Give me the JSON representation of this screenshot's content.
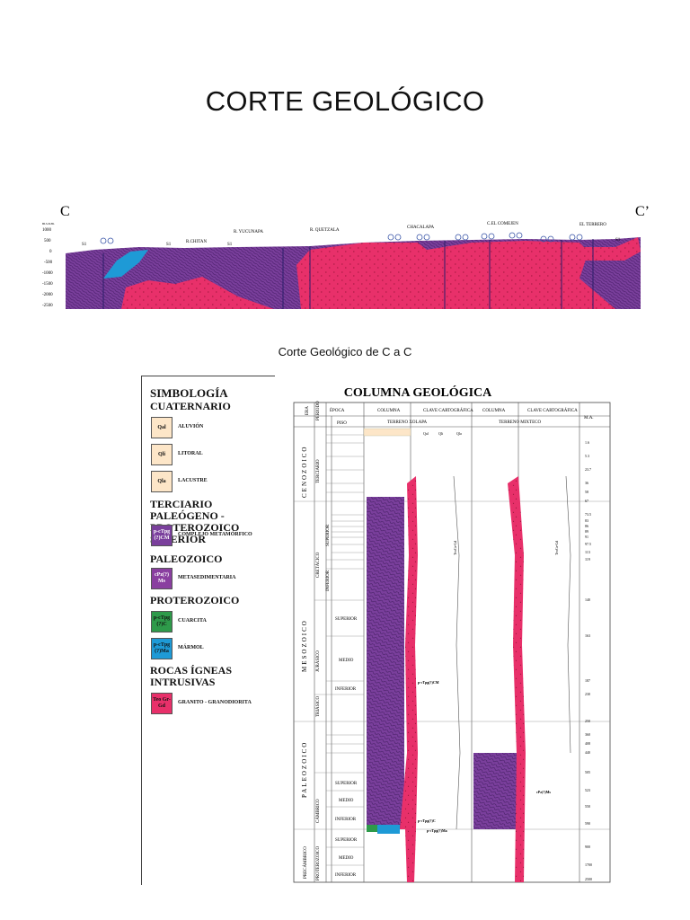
{
  "page": {
    "title": "CORTE GEOLÓGICO",
    "caption": "Corte Geológico de C a C"
  },
  "section": {
    "left_label": "C",
    "right_label": "C’",
    "unit_label": "m.s.n.m.",
    "y_ticks": [
      "1000",
      "500",
      "0",
      "-500",
      "-1000",
      "-1500",
      "-2000",
      "-2500"
    ],
    "places": [
      "R.CHITAN",
      "R. YUCUNAPA",
      "R. QUETZALA",
      "CHACALAPA",
      "C.EL COMEJEN",
      "EL TERRERO"
    ],
    "markers": [
      "S1",
      "S1",
      "S1",
      "S1"
    ],
    "colors": {
      "purple": "#7a3f9c",
      "pink": "#e8306a",
      "blue": "#1e9ad6"
    }
  },
  "legend": {
    "title": "SIMBOLOGÍA",
    "groups": [
      {
        "heading": "CUATERNARIO",
        "items": [
          {
            "code": "Qal",
            "label": "ALUVIÓN",
            "color": "#fde6c8"
          },
          {
            "code": "Qli",
            "label": "LITORAL",
            "color": "#fde6c8"
          },
          {
            "code": "Qla",
            "label": "LACUSTRE",
            "color": "#fde6c8"
          }
        ]
      },
      {
        "heading": "TERCIARIO PALEÓGENO - PROTEROZOICO SUPERIOR",
        "items": [
          {
            "code": "p-cTpg (?)CM",
            "label": "COMPLEJO METAMÓRFICO",
            "color": "#7a3f9c"
          }
        ]
      },
      {
        "heading": "PALEOZOICO",
        "items": [
          {
            "code": "cPz(?) Ms",
            "label": "METASEDIMENTARIA",
            "color": "#8a3fa0"
          }
        ]
      },
      {
        "heading": "PROTEROZOICO",
        "items": [
          {
            "code": "p-cTpg (?)C",
            "label": "CUARCITA",
            "color": "#2e9a4a"
          },
          {
            "code": "p-cTpg (?)Ma",
            "label": "MÁRMOL",
            "color": "#1e9ad6"
          }
        ]
      },
      {
        "heading": "ROCAS ÍGNEAS INTRUSIVAS",
        "items": [
          {
            "code": "Teo Gr-Gd",
            "label": "GRANITO - GRANODIORITA",
            "color": "#e8306a"
          }
        ]
      }
    ]
  },
  "column": {
    "title": "COLUMNA GEOLÓGICA",
    "headers": {
      "era": "ERA",
      "periodo": "PERIODO",
      "epoca": "ÉPOCA",
      "piso": "PISO",
      "columna1": "COLUMNA",
      "clave1": "CLAVE CARTOGRÁFICA",
      "columna2": "COLUMNA",
      "clave2": "CLAVE CARTOGRÁFICA",
      "terreno1": "TERRENO XOLAPA",
      "terreno2": "TERRENO MIXTECO",
      "ma": "M.A."
    },
    "eras": [
      "CENOZOICO",
      "MESOZOICO",
      "PALEOZOICO",
      "PRECÁMBRICO"
    ],
    "periods": [
      "TERCIARIO",
      "CRETÁCICO",
      "JURÁSICO",
      "TRIÁSICO",
      "CÁMBRICO",
      "PROTEROZOICO"
    ],
    "epochs": [
      "SUPERIOR",
      "INFERIOR",
      "SUPERIOR",
      "MEDIO",
      "INFERIOR",
      "SUPERIOR",
      "MEDIO",
      "INFERIOR",
      "SUPERIOR",
      "MEDIO",
      "INFERIOR"
    ],
    "ages": [
      "1.6",
      "5.3",
      "23.7",
      "36",
      "58",
      "67",
      "73.5",
      "83",
      "86",
      "89",
      "91",
      "97.5",
      "113",
      "119",
      "140",
      "163",
      "187",
      "230",
      "250",
      "360",
      "408",
      "440",
      "505",
      "523",
      "550",
      "590",
      "900",
      "1700",
      "2500"
    ],
    "units": {
      "quaternary": [
        "Qal",
        "Qli",
        "Qla"
      ],
      "xolapa_main": "p-cTpg(?)CM",
      "xolapa_c": "p-cTpg(?)C",
      "xolapa_ma": "p-cTpg(?)Ma",
      "xolapa_granite": "TeoGr-Gd",
      "mixteco_ms": "cPz(?)Ms",
      "mixteco_granite": "TeoGr-Gd"
    }
  }
}
